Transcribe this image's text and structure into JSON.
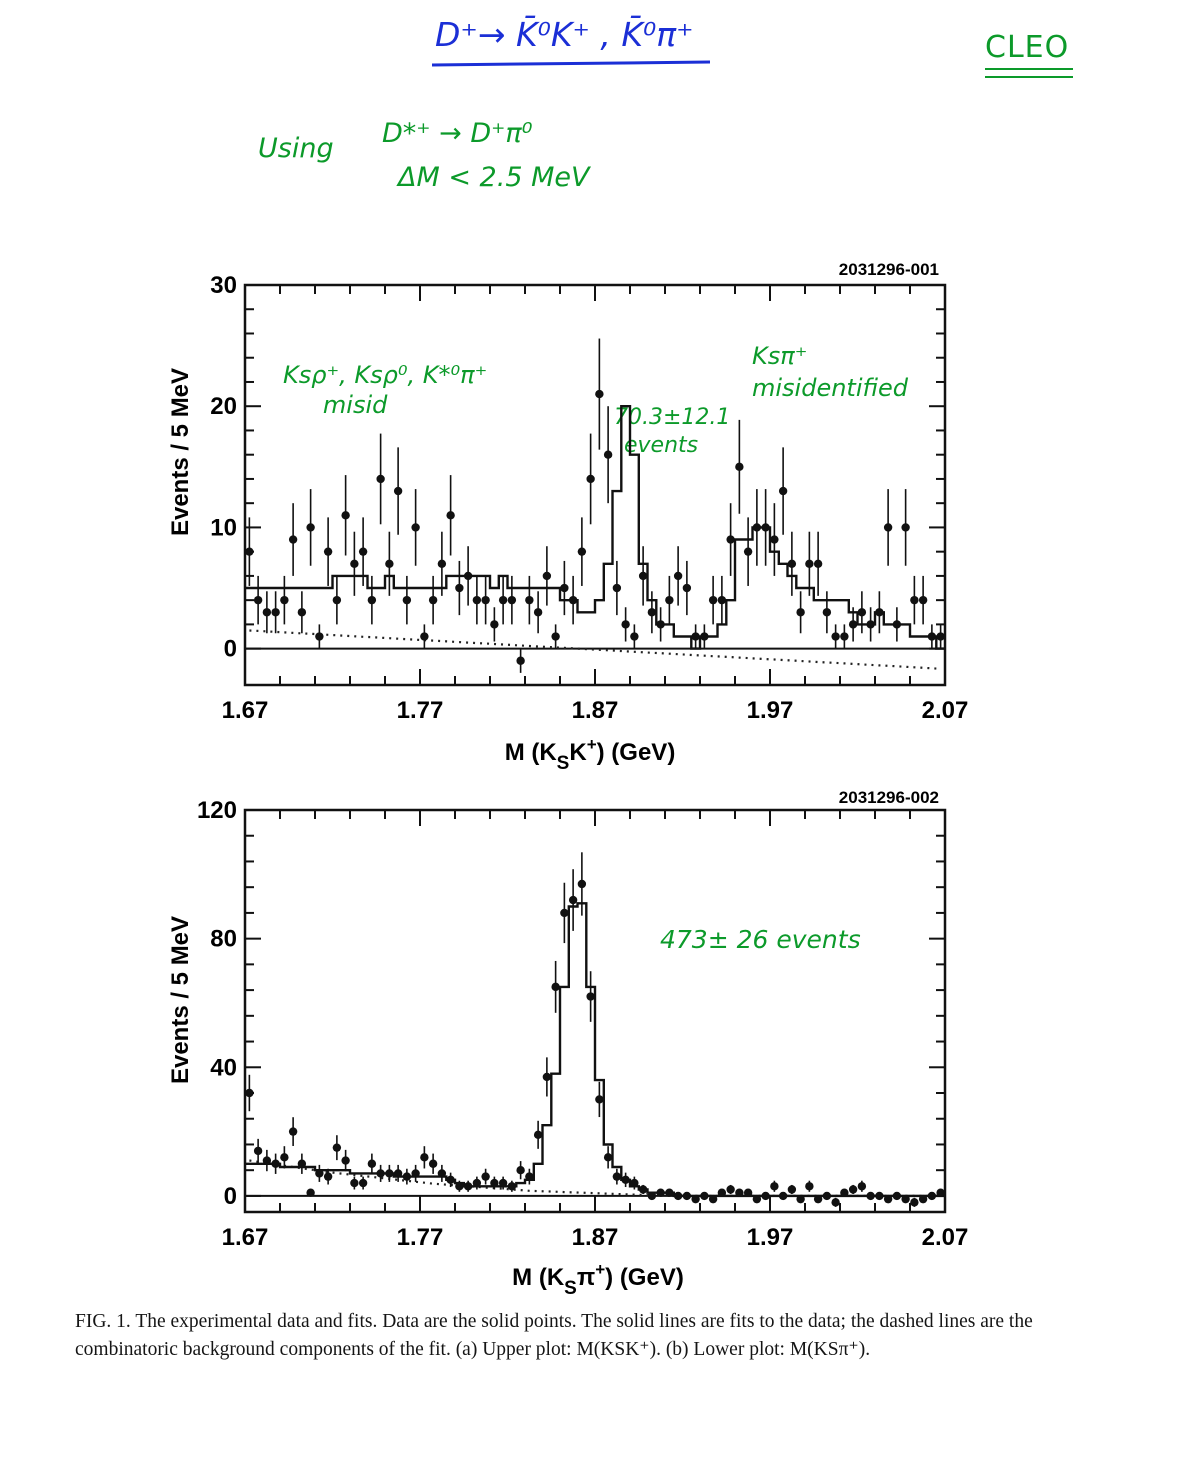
{
  "annotations": {
    "top_title": "D⁺→ K̄⁰K⁺ , K̄⁰π⁺",
    "experiment": "CLEO",
    "using": "Using",
    "using_decay": "D*⁺ → D⁺π⁰",
    "delta_m": "ΔM < 2.5 MeV",
    "upper_left_note_line1": "Ksρ⁺, Ksρ⁰, K*⁰π⁺",
    "upper_left_note_line2": "misid",
    "upper_signal_count_line1": "70.3±12.1",
    "upper_signal_count_line2": "events",
    "upper_right_note_line1": "Ksπ⁺",
    "upper_right_note_line2": "misidentified",
    "lower_signal_count": "473± 26 events"
  },
  "caption": "FIG. 1. The experimental data and fits. Data are the solid points. The solid lines are fits to the data; the dashed lines are the combinatoric background components of the fit. (a) Upper plot: M(KSK⁺). (b) Lower plot: M(KSπ⁺).",
  "colors": {
    "ink": "#111111",
    "handwriting_blue": "#1b2fd6",
    "handwriting_green": "#0c9a2a"
  },
  "chart_data": [
    {
      "type": "scatter",
      "id": "2031296-001",
      "xlabel": "M (K",
      "xlabel_sub": "S",
      "xlabel_rest": "K",
      "xlabel_sup": "+",
      "xlabel_end": ") (GeV)",
      "ylabel": "Events / 5 MeV",
      "xlim": [
        1.67,
        2.07
      ],
      "ylim": [
        -3,
        30
      ],
      "xticks": [
        "1.67",
        "1.77",
        "1.87",
        "1.97",
        "2.07"
      ],
      "yticks": [
        "0",
        "10",
        "20",
        "30"
      ],
      "ytick_values": [
        0,
        10,
        20,
        30
      ],
      "x": [
        1.6725,
        1.6775,
        1.6825,
        1.6875,
        1.6925,
        1.6975,
        1.7025,
        1.7075,
        1.7125,
        1.7175,
        1.7225,
        1.7275,
        1.7325,
        1.7375,
        1.7425,
        1.7475,
        1.7525,
        1.7575,
        1.7625,
        1.7675,
        1.7725,
        1.7775,
        1.7825,
        1.7875,
        1.7925,
        1.7975,
        1.8025,
        1.8075,
        1.8125,
        1.8175,
        1.8225,
        1.8275,
        1.8325,
        1.8375,
        1.8425,
        1.8475,
        1.8525,
        1.8575,
        1.8625,
        1.8675,
        1.8725,
        1.8775,
        1.8825,
        1.8875,
        1.8925,
        1.8975,
        1.9025,
        1.9075,
        1.9125,
        1.9175,
        1.9225,
        1.9275,
        1.9325,
        1.9375,
        1.9425,
        1.9475,
        1.9525,
        1.9575,
        1.9625,
        1.9675,
        1.9725,
        1.9775,
        1.9825,
        1.9875,
        1.9925,
        1.9975,
        2.0025,
        2.0075,
        2.0125,
        2.0175,
        2.0225,
        2.0275,
        2.0325,
        2.0375,
        2.0425,
        2.0475,
        2.0525,
        2.0575,
        2.0625,
        2.0675
      ],
      "y": [
        8,
        4,
        3,
        3,
        4,
        9,
        3,
        10,
        1,
        8,
        4,
        11,
        7,
        8,
        4,
        14,
        7,
        13,
        4,
        10,
        1,
        4,
        7,
        11,
        5,
        6,
        4,
        4,
        2,
        4,
        4,
        -1,
        4,
        3,
        6,
        1,
        5,
        4,
        8,
        14,
        21,
        16,
        5,
        2,
        1,
        6,
        3,
        2,
        4,
        6,
        5,
        1,
        1,
        4,
        4,
        9,
        15,
        8,
        10,
        10,
        9,
        13,
        7,
        3,
        7,
        7,
        3,
        1,
        1,
        2,
        3,
        2,
        3,
        10,
        2,
        10,
        4,
        4,
        1,
        1
      ],
      "fit": [
        5,
        5,
        5,
        5,
        5,
        5,
        5,
        5,
        5,
        5,
        6,
        6,
        6,
        6,
        5,
        5,
        6,
        5,
        5,
        5,
        5,
        5,
        5,
        6,
        6,
        6,
        6,
        6,
        5,
        6,
        5,
        5,
        5,
        5,
        5,
        5,
        4,
        4,
        3,
        3,
        4,
        7,
        13,
        20,
        16,
        7,
        4,
        2,
        2,
        1,
        1,
        0,
        1,
        1,
        2,
        4,
        9,
        9,
        10,
        10,
        8,
        7,
        6,
        5,
        5,
        4,
        4,
        4,
        4,
        3,
        2,
        2,
        3,
        2,
        2,
        2,
        1,
        1,
        1,
        0
      ],
      "background": [
        1.5,
        1.46,
        1.42,
        1.38,
        1.34,
        1.3,
        1.26,
        1.22,
        1.18,
        1.14,
        1.1,
        1.06,
        1.02,
        0.98,
        0.94,
        0.9,
        0.86,
        0.82,
        0.78,
        0.74,
        0.7,
        0.66,
        0.62,
        0.58,
        0.54,
        0.5,
        0.46,
        0.42,
        0.38,
        0.34,
        0.3,
        0.26,
        0.22,
        0.18,
        0.14,
        0.1,
        0.06,
        0.02,
        -0.02,
        -0.06,
        -0.1,
        -0.14,
        -0.18,
        -0.22,
        -0.26,
        -0.3,
        -0.34,
        -0.38,
        -0.42,
        -0.46,
        -0.5,
        -0.54,
        -0.58,
        -0.62,
        -0.66,
        -0.7,
        -0.74,
        -0.78,
        -0.82,
        -0.86,
        -0.9,
        -0.94,
        -0.98,
        -1.02,
        -1.06,
        -1.1,
        -1.14,
        -1.18,
        -1.22,
        -1.26,
        -1.3,
        -1.34,
        -1.38,
        -1.42,
        -1.46,
        -1.5,
        -1.54,
        -1.58,
        -1.62,
        -1.66
      ]
    },
    {
      "type": "scatter",
      "id": "2031296-002",
      "xlabel": "M (K",
      "xlabel_sub": "S",
      "xlabel_rest": "π",
      "xlabel_sup": "+",
      "xlabel_end": ") (GeV)",
      "ylabel": "Events / 5 MeV",
      "xlim": [
        1.67,
        2.07
      ],
      "ylim": [
        -5,
        120
      ],
      "xticks": [
        "1.67",
        "1.77",
        "1.87",
        "1.97",
        "2.07"
      ],
      "yticks": [
        "0",
        "40",
        "80",
        "120"
      ],
      "ytick_values": [
        0,
        40,
        80,
        120
      ],
      "x": [
        1.6725,
        1.6775,
        1.6825,
        1.6875,
        1.6925,
        1.6975,
        1.7025,
        1.7075,
        1.7125,
        1.7175,
        1.7225,
        1.7275,
        1.7325,
        1.7375,
        1.7425,
        1.7475,
        1.7525,
        1.7575,
        1.7625,
        1.7675,
        1.7725,
        1.7775,
        1.7825,
        1.7875,
        1.7925,
        1.7975,
        1.8025,
        1.8075,
        1.8125,
        1.8175,
        1.8225,
        1.8275,
        1.8325,
        1.8375,
        1.8425,
        1.8475,
        1.8525,
        1.8575,
        1.8625,
        1.8675,
        1.8725,
        1.8775,
        1.8825,
        1.8875,
        1.8925,
        1.8975,
        1.9025,
        1.9075,
        1.9125,
        1.9175,
        1.9225,
        1.9275,
        1.9325,
        1.9375,
        1.9425,
        1.9475,
        1.9525,
        1.9575,
        1.9625,
        1.9675,
        1.9725,
        1.9775,
        1.9825,
        1.9875,
        1.9925,
        1.9975,
        2.0025,
        2.0075,
        2.0125,
        2.0175,
        2.0225,
        2.0275,
        2.0325,
        2.0375,
        2.0425,
        2.0475,
        2.0525,
        2.0575,
        2.0625,
        2.0675
      ],
      "y": [
        32,
        14,
        11,
        10,
        12,
        20,
        10,
        1,
        7,
        6,
        15,
        11,
        4,
        4,
        10,
        7,
        7,
        7,
        6,
        7,
        12,
        10,
        7,
        5,
        3,
        3,
        4,
        6,
        4,
        4,
        3,
        8,
        6,
        19,
        37,
        65,
        88,
        92,
        97,
        62,
        30,
        12,
        6,
        5,
        4,
        2,
        0,
        1,
        1,
        0,
        0,
        -1,
        0,
        -1,
        1,
        2,
        1,
        1,
        -1,
        0,
        3,
        0,
        2,
        -1,
        3,
        -1,
        0,
        -2,
        1,
        2,
        3,
        0,
        0,
        -1,
        0,
        -1,
        -2,
        -1,
        0,
        1
      ],
      "fit": [
        10,
        10,
        10,
        10,
        9,
        9,
        9,
        9,
        8,
        8,
        8,
        8,
        7,
        7,
        7,
        7,
        7,
        6,
        6,
        6,
        6,
        6,
        6,
        5,
        4,
        3,
        3,
        3,
        3,
        3,
        3,
        4,
        5,
        10,
        22,
        38,
        65,
        90,
        91,
        65,
        36,
        16,
        9,
        5,
        3,
        2,
        1,
        1,
        1,
        0,
        0,
        0,
        0,
        0,
        0,
        0,
        0,
        0,
        0,
        0,
        0,
        0,
        0,
        0,
        0,
        0,
        0,
        0,
        0,
        0,
        0,
        0,
        0,
        0,
        0,
        0,
        0,
        0,
        0,
        0
      ],
      "background": [
        11,
        10.6,
        10.2,
        9.8,
        9.4,
        9.0,
        8.6,
        8.2,
        7.8,
        7.4,
        7.1,
        6.8,
        6.5,
        6.2,
        5.9,
        5.6,
        5.3,
        5.0,
        4.7,
        4.4,
        4.1,
        3.8,
        3.6,
        3.4,
        3.2,
        3.0,
        2.8,
        2.6,
        2.4,
        2.2,
        2.0,
        1.8,
        1.6,
        1.5,
        1.4,
        1.3,
        1.2,
        1.1,
        1.0,
        0.9,
        0.8,
        0.7,
        0.6,
        0.5,
        0.4,
        0.3,
        0.2,
        0.1,
        0,
        0,
        0,
        0,
        0,
        0,
        0,
        0,
        0,
        0,
        0,
        0,
        0,
        0,
        0,
        0,
        0,
        0,
        0,
        0,
        0,
        0,
        0,
        0,
        0,
        0,
        0,
        0,
        0,
        0,
        0,
        0
      ]
    }
  ]
}
